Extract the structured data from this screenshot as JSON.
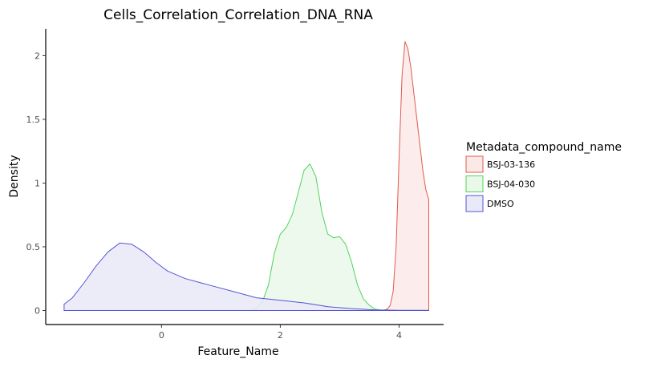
{
  "chart_data": {
    "type": "area",
    "title": "Cells_Correlation_Correlation_DNA_RNA",
    "xlabel": "Feature_Name",
    "ylabel": "Density",
    "xlim": [
      -1.95,
      4.75
    ],
    "ylim": [
      -0.11,
      2.21
    ],
    "xticks": [
      0,
      2,
      4
    ],
    "xtick_labels": [
      "0",
      "2",
      "4"
    ],
    "yticks": [
      0,
      0.5,
      1,
      1.5,
      2
    ],
    "ytick_labels": [
      "0",
      "0.5",
      "1",
      "1.5",
      "2"
    ],
    "grid": false,
    "legend": {
      "title": "Metadata_compound_name",
      "placement": "right",
      "entries": [
        "BSJ-03-136",
        "BSJ-04-030",
        "DMSO"
      ]
    },
    "series": [
      {
        "name": "BSJ-03-136",
        "stroke": "#e15a4f",
        "fill": "#fbe9e7",
        "x": [
          -1.64,
          3.72,
          3.8,
          3.85,
          3.9,
          3.95,
          4.0,
          4.05,
          4.1,
          4.15,
          4.2,
          4.25,
          4.3,
          4.35,
          4.4,
          4.45,
          4.5,
          4.5
        ],
        "y": [
          0,
          0,
          0.01,
          0.04,
          0.15,
          0.5,
          1.2,
          1.85,
          2.11,
          2.05,
          1.9,
          1.7,
          1.5,
          1.3,
          1.1,
          0.95,
          0.87,
          0
        ]
      },
      {
        "name": "BSJ-04-030",
        "stroke": "#50d45c",
        "fill": "#eaf8ea",
        "x": [
          -1.64,
          1.5,
          1.6,
          1.7,
          1.8,
          1.9,
          2.0,
          2.1,
          2.2,
          2.3,
          2.4,
          2.5,
          2.6,
          2.7,
          2.8,
          2.9,
          3.0,
          3.1,
          3.2,
          3.3,
          3.4,
          3.5,
          3.6,
          3.7,
          3.8,
          4.5
        ],
        "y": [
          0,
          0,
          0.02,
          0.07,
          0.2,
          0.45,
          0.6,
          0.65,
          0.75,
          0.92,
          1.1,
          1.15,
          1.05,
          0.77,
          0.6,
          0.57,
          0.58,
          0.52,
          0.38,
          0.2,
          0.09,
          0.04,
          0.01,
          0.003,
          0,
          0
        ]
      },
      {
        "name": "DMSO",
        "stroke": "#5555d8",
        "fill": "#e9e9f8",
        "x": [
          -1.64,
          -1.64,
          -1.5,
          -1.3,
          -1.1,
          -0.9,
          -0.7,
          -0.5,
          -0.3,
          -0.1,
          0.1,
          0.4,
          0.8,
          1.2,
          1.6,
          2.0,
          2.4,
          2.8,
          3.2,
          3.6,
          4.0,
          4.5,
          4.5
        ],
        "y": [
          0,
          0.05,
          0.1,
          0.22,
          0.35,
          0.46,
          0.53,
          0.52,
          0.46,
          0.38,
          0.31,
          0.25,
          0.2,
          0.15,
          0.1,
          0.08,
          0.06,
          0.03,
          0.015,
          0.005,
          0.002,
          0.001,
          0
        ]
      }
    ]
  }
}
